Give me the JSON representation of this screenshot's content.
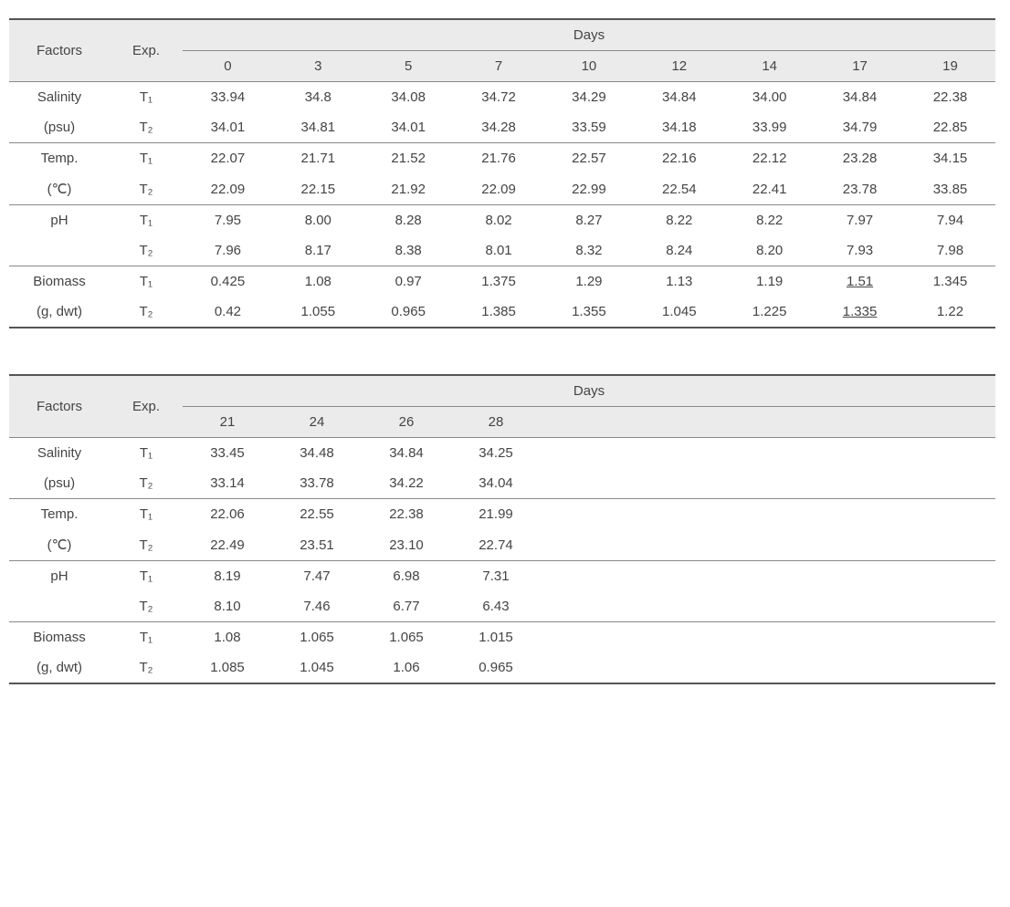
{
  "table1": {
    "header": {
      "factors": "Factors",
      "exp": "Exp.",
      "days": "Days",
      "day_cols": [
        "0",
        "3",
        "5",
        "7",
        "10",
        "12",
        "14",
        "17",
        "19"
      ]
    },
    "sections": [
      {
        "label1": "Salinity",
        "label2": "(psu)",
        "exp1": "T₁",
        "exp2": "T₂",
        "row1": [
          "33.94",
          "34.8",
          "34.08",
          "34.72",
          "34.29",
          "34.84",
          "34.00",
          "34.84",
          "22.38"
        ],
        "row2": [
          "34.01",
          "34.81",
          "34.01",
          "34.28",
          "33.59",
          "34.18",
          "33.99",
          "34.79",
          "22.85"
        ],
        "underline1": [],
        "underline2": []
      },
      {
        "label1": "Temp.",
        "label2": "(℃)",
        "exp1": "T₁",
        "exp2": "T₂",
        "row1": [
          "22.07",
          "21.71",
          "21.52",
          "21.76",
          "22.57",
          "22.16",
          "22.12",
          "23.28",
          "34.15"
        ],
        "row2": [
          "22.09",
          "22.15",
          "21.92",
          "22.09",
          "22.99",
          "22.54",
          "22.41",
          "23.78",
          "33.85"
        ],
        "underline1": [],
        "underline2": []
      },
      {
        "label1": "pH",
        "label2": "",
        "exp1": "T₁",
        "exp2": "T₂",
        "row1": [
          "7.95",
          "8.00",
          "8.28",
          "8.02",
          "8.27",
          "8.22",
          "8.22",
          "7.97",
          "7.94"
        ],
        "row2": [
          "7.96",
          "8.17",
          "8.38",
          "8.01",
          "8.32",
          "8.24",
          "8.20",
          "7.93",
          "7.98"
        ],
        "underline1": [],
        "underline2": []
      },
      {
        "label1": "Biomass",
        "label2": "(g, dwt)",
        "exp1": "T₁",
        "exp2": "T₂",
        "row1": [
          "0.425",
          "1.08",
          "0.97",
          "1.375",
          "1.29",
          "1.13",
          "1.19",
          "1.51",
          "1.345"
        ],
        "row2": [
          "0.42",
          "1.055",
          "0.965",
          "1.385",
          "1.355",
          "1.045",
          "1.225",
          "1.335",
          "1.22"
        ],
        "underline1": [
          7
        ],
        "underline2": [
          7
        ]
      }
    ]
  },
  "table2": {
    "header": {
      "factors": "Factors",
      "exp": "Exp.",
      "days": "Days",
      "day_cols": [
        "21",
        "24",
        "26",
        "28"
      ]
    },
    "sections": [
      {
        "label1": "Salinity",
        "label2": "(psu)",
        "exp1": "T₁",
        "exp2": "T₂",
        "row1": [
          "33.45",
          "34.48",
          "34.84",
          "34.25"
        ],
        "row2": [
          "33.14",
          "33.78",
          "34.22",
          "34.04"
        ],
        "underline1": [],
        "underline2": []
      },
      {
        "label1": "Temp.",
        "label2": "(℃)",
        "exp1": "T₁",
        "exp2": "T₂",
        "row1": [
          "22.06",
          "22.55",
          "22.38",
          "21.99"
        ],
        "row2": [
          "22.49",
          "23.51",
          "23.10",
          "22.74"
        ],
        "underline1": [],
        "underline2": []
      },
      {
        "label1": "pH",
        "label2": "",
        "exp1": "T₁",
        "exp2": "T₂",
        "row1": [
          "8.19",
          "7.47",
          "6.98",
          "7.31"
        ],
        "row2": [
          "8.10",
          "7.46",
          "6.77",
          "6.43"
        ],
        "underline1": [],
        "underline2": []
      },
      {
        "label1": "Biomass",
        "label2": "(g, dwt)",
        "exp1": "T₁",
        "exp2": "T₂",
        "row1": [
          "1.08",
          "1.065",
          "1.065",
          "1.015"
        ],
        "row2": [
          "1.085",
          "1.045",
          "1.06",
          "0.965"
        ],
        "underline1": [],
        "underline2": []
      }
    ]
  }
}
